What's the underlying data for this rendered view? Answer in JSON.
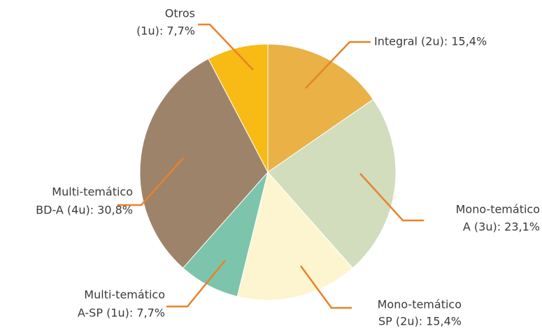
{
  "chart_data": {
    "type": "pie",
    "labels": [
      [
        "Integral (2u): 15,4%"
      ],
      [
        "Mono-temático",
        "A (3u): 23,1%"
      ],
      [
        "Mono-temático",
        "SP (2u): 15,4%"
      ],
      [
        "Multi-temático",
        "A-SP (1u): 7,7%"
      ],
      [
        "Multi-temático",
        "BD-A (4u): 30,8%"
      ],
      [
        "Otros",
        "(1u): 7,7%"
      ]
    ],
    "values": [
      15.4,
      23.1,
      15.4,
      7.7,
      30.8,
      7.7
    ],
    "colors": [
      "#e9b146",
      "#d1ddbd",
      "#fdf5cf",
      "#7cc4ab",
      "#9e836b",
      "#f8ba14"
    ]
  }
}
